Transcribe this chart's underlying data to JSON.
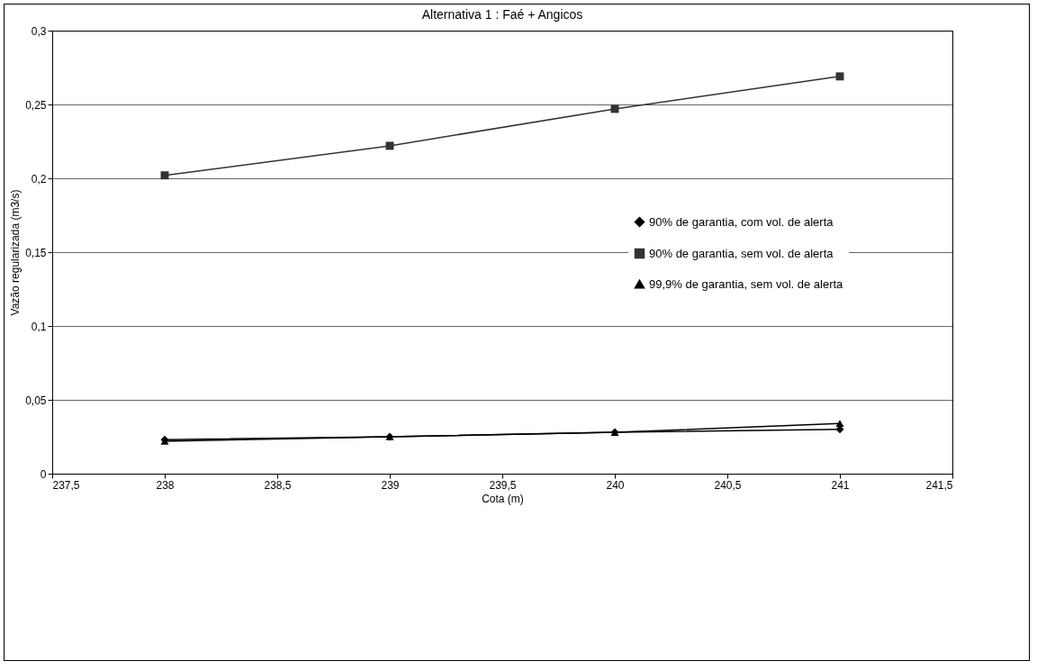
{
  "chart_data": {
    "type": "line",
    "title": "Alternativa 1 :  Faé + Angicos",
    "xlabel": "Cota (m)",
    "ylabel": "Vazão regularizada (m3/s)",
    "x": [
      238,
      239,
      240,
      241
    ],
    "series": [
      {
        "name": "90% de garantia, com vol. de alerta",
        "color": "#000000",
        "marker": "diamond",
        "values": [
          0.023,
          0.025,
          0.028,
          0.03
        ]
      },
      {
        "name": "90% de garantia, sem vol. de alerta",
        "color": "#333333",
        "marker": "square",
        "values": [
          0.202,
          0.222,
          0.247,
          0.269
        ]
      },
      {
        "name": "99,9% de garantia, sem vol. de alerta",
        "color": "#000000",
        "marker": "triangle",
        "values": [
          0.022,
          0.025,
          0.028,
          0.034
        ]
      }
    ],
    "xlim": [
      237.5,
      241.5
    ],
    "xticks": [
      {
        "value": 237.5,
        "label": "237,5"
      },
      238,
      {
        "value": 238.5,
        "label": "238,5"
      },
      239,
      {
        "value": 239.5,
        "label": "239,5"
      },
      240,
      {
        "value": 240.5,
        "label": "240,5"
      },
      241,
      {
        "value": 241.5,
        "label": "241,5"
      }
    ],
    "ylim": [
      0,
      0.3
    ],
    "yticks": [
      0,
      {
        "value": 0.05,
        "label": "0,05"
      },
      {
        "value": 0.1,
        "label": "0,1"
      },
      {
        "value": 0.15,
        "label": "0,15"
      },
      {
        "value": 0.2,
        "label": "0,2"
      },
      {
        "value": 0.25,
        "label": "0,25"
      },
      {
        "value": 0.3,
        "label": "0,3"
      }
    ],
    "grid": "y",
    "legend": "right",
    "line_style": "solid"
  }
}
